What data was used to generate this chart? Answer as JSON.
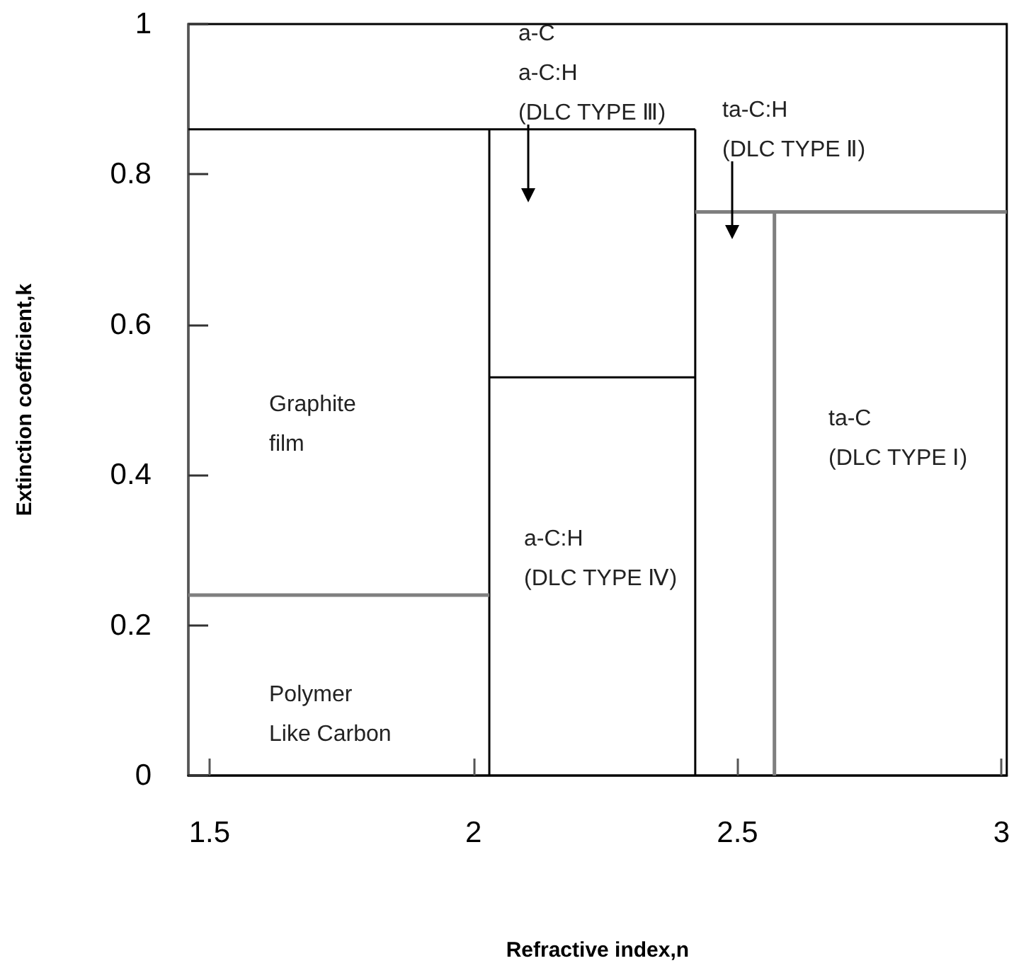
{
  "chart_data": {
    "type": "line",
    "xlabel": "Refractive index,n",
    "ylabel": "Extinction coefficient,k",
    "xlim": [
      1.46,
      3.01
    ],
    "xticks": [
      1.5,
      2,
      2.5,
      3
    ],
    "ylim": [
      0,
      1
    ],
    "yticks": [
      0,
      0.2,
      0.4,
      0.6,
      0.8,
      1
    ],
    "grid": false,
    "marker": "none",
    "line_style": "solid",
    "series": [
      {
        "color": "#000000",
        "x": [
          1.46,
          2.42
        ],
        "values": [
          0.86,
          0.86
        ]
      },
      {
        "color": "#000000",
        "x": [
          2.03,
          2.03
        ],
        "values": [
          0,
          0.86
        ]
      },
      {
        "color": "#000000",
        "x": [
          2.42,
          2.42
        ],
        "values": [
          0,
          0.86
        ]
      },
      {
        "color": "#000000",
        "x": [
          2.03,
          2.42
        ],
        "values": [
          0.53,
          0.53
        ]
      },
      {
        "color": "#7f7f7f",
        "x": [
          1.46,
          2.03
        ],
        "values": [
          0.24,
          0.24
        ]
      },
      {
        "color": "#7f7f7f",
        "x": [
          2.42,
          3.01
        ],
        "values": [
          0.75,
          0.75
        ]
      },
      {
        "color": "#7f7f7f",
        "x": [
          2.57,
          2.57
        ],
        "values": [
          0,
          0.75
        ]
      }
    ],
    "annotations": [
      "Graphite\nfilm",
      "Polymer\nLike Carbon",
      "a-C:H\n(DLC TYPE Ⅳ)",
      "ta-C\n(DLC TYPE Ⅰ)",
      "a-C\na-C:H\n(DLC TYPE Ⅲ)",
      "ta-C:H\n(DLC TYPE Ⅱ)"
    ]
  }
}
